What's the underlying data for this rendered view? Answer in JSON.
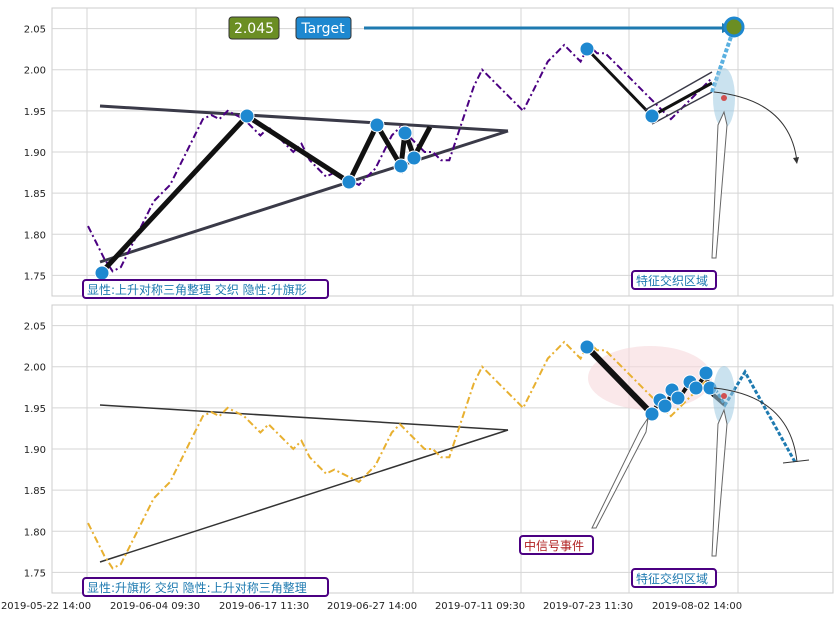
{
  "chart_data": [
    {
      "type": "line",
      "panel": "top",
      "ylim": [
        1.725,
        2.075
      ],
      "yticks": [
        "1.75",
        "1.80",
        "1.85",
        "1.90",
        "1.95",
        "2.00",
        "2.05"
      ],
      "series": [
        {
          "color": "#4b0082",
          "values": [
            1.81,
            1.79,
            1.77,
            1.755,
            1.76,
            1.78,
            1.8,
            1.82,
            1.84,
            1.85,
            1.86,
            1.88,
            1.9,
            1.92,
            1.94,
            1.945,
            1.94,
            1.95,
            1.945,
            1.94,
            1.93,
            1.92,
            1.93,
            1.92,
            1.91,
            1.9,
            1.91,
            1.89,
            1.88,
            1.87,
            1.875,
            1.87,
            1.865,
            1.86,
            1.87,
            1.88,
            1.9,
            1.92,
            1.93,
            1.92,
            1.91,
            1.9,
            1.9,
            1.89,
            1.89,
            1.92,
            1.95,
            1.98,
            2.0,
            1.99,
            1.98,
            1.97,
            1.96,
            1.95,
            1.97,
            1.99,
            2.01,
            2.02,
            2.03,
            2.02,
            2.01,
            2.03,
            2.02,
            2.02,
            2.01,
            2.0,
            1.99,
            1.98,
            1.97,
            1.96,
            1.95,
            1.94,
            1.95,
            1.96,
            1.97,
            1.98,
            1.99
          ]
        }
      ],
      "patterns": {
        "triangle_upper": [
          [
            1.95,
            1.92
          ]
        ],
        "triangle_lower": [
          [
            1.765,
            1.92
          ]
        ],
        "zigzag": [
          1.75,
          1.94,
          1.86,
          1.93,
          1.88,
          1.92,
          1.89
        ],
        "flag": [
          2.02,
          1.94,
          1.97
        ]
      },
      "annotations": {
        "target_value": "2.045",
        "target_label": "Target",
        "pattern_label": "显性:上升对称三角整理 交织 隐性:升旗形",
        "zone_label": "特征交织区域"
      }
    },
    {
      "type": "line",
      "panel": "bottom",
      "ylim": [
        1.725,
        2.075
      ],
      "yticks": [
        "1.75",
        "1.80",
        "1.85",
        "1.90",
        "1.95",
        "2.00",
        "2.05"
      ],
      "series": [
        {
          "color": "#e8b030",
          "values": [
            1.81,
            1.79,
            1.77,
            1.755,
            1.76,
            1.78,
            1.8,
            1.82,
            1.84,
            1.85,
            1.86,
            1.88,
            1.9,
            1.92,
            1.94,
            1.945,
            1.94,
            1.95,
            1.945,
            1.94,
            1.93,
            1.92,
            1.93,
            1.92,
            1.91,
            1.9,
            1.91,
            1.89,
            1.88,
            1.87,
            1.875,
            1.87,
            1.865,
            1.86,
            1.87,
            1.88,
            1.9,
            1.92,
            1.93,
            1.92,
            1.91,
            1.9,
            1.9,
            1.89,
            1.89,
            1.92,
            1.95,
            1.98,
            2.0,
            1.99,
            1.98,
            1.97,
            1.96,
            1.95,
            1.97,
            1.99,
            2.01,
            2.02,
            2.03,
            2.02,
            2.01,
            2.03,
            2.02,
            2.02,
            2.01,
            2.0,
            1.99,
            1.98,
            1.97,
            1.96,
            1.95,
            1.94,
            1.95,
            1.96,
            1.97,
            1.98,
            1.99
          ]
        }
      ],
      "annotations": {
        "pattern_label": "显性:升旗形 交织 隐性:上升对称三角整理",
        "signal_label": "中信号事件",
        "zone_label": "特征交织区域"
      }
    }
  ],
  "x_ticks": [
    "2019-05-22 14:00",
    "2019-06-04 09:30",
    "2019-06-17 11:30",
    "2019-06-27 14:00",
    "2019-07-11 09:30",
    "2019-07-23 11:30",
    "2019-08-02 14:00"
  ],
  "colors": {
    "top_line": "#4b0082",
    "bottom_line": "#e8b030",
    "marker": "#1e88d0",
    "pattern": "#111111",
    "triangle": "#3a3a48",
    "target_box": "#6b8e23",
    "target_label_box": "#1e88d0",
    "label_border": "#4b0082",
    "label_text": "#1e7ab0",
    "signal_text": "#b02020"
  }
}
